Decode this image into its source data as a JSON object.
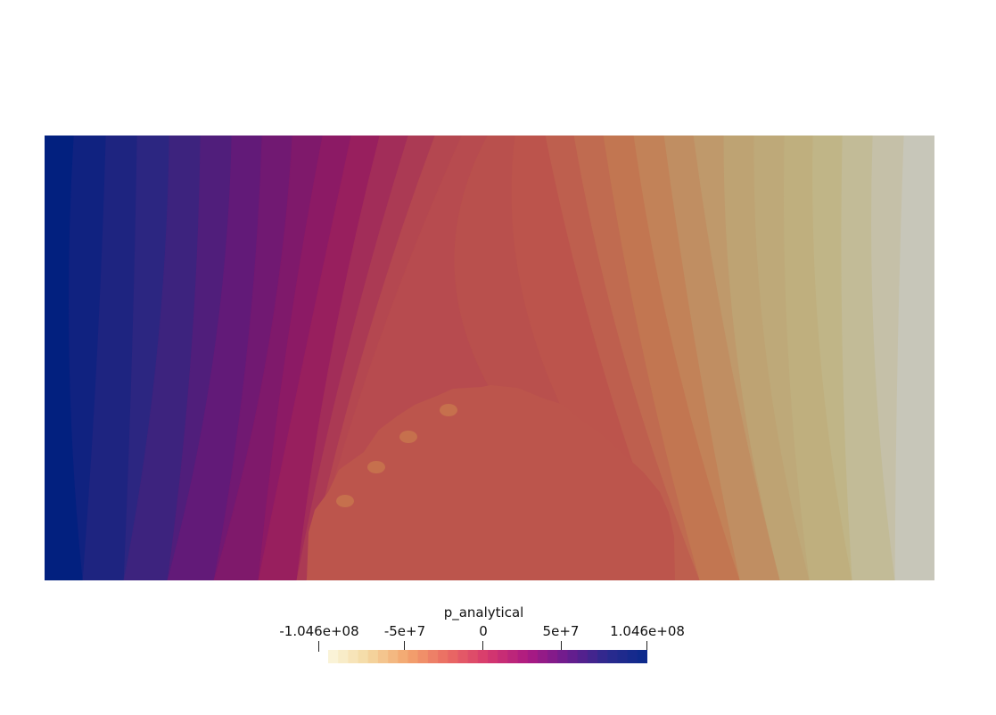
{
  "scalar_bar": {
    "title": "p_analytical",
    "range": [
      -104600000,
      104600000
    ],
    "ticks": [
      {
        "value": -104600000,
        "label": "-1.046e+08"
      },
      {
        "value": -50000000,
        "label": "-5e+7"
      },
      {
        "value": 0,
        "label": "0"
      },
      {
        "value": 50000000,
        "label": "5e+7"
      },
      {
        "value": 104600000,
        "label": "1.046e+08"
      }
    ],
    "colormap": [
      "#fbf7df",
      "#f4d9a2",
      "#f3a46d",
      "#ea6b63",
      "#d6396d",
      "#ad1a82",
      "#6b1c8e",
      "#2b2a8e",
      "#0a2a8c"
    ],
    "bands": 32
  },
  "field": {
    "colors": {
      "left_edge": "#02207f",
      "center_disk": "#bc554c",
      "right_edge": "#c7c6b9"
    }
  }
}
